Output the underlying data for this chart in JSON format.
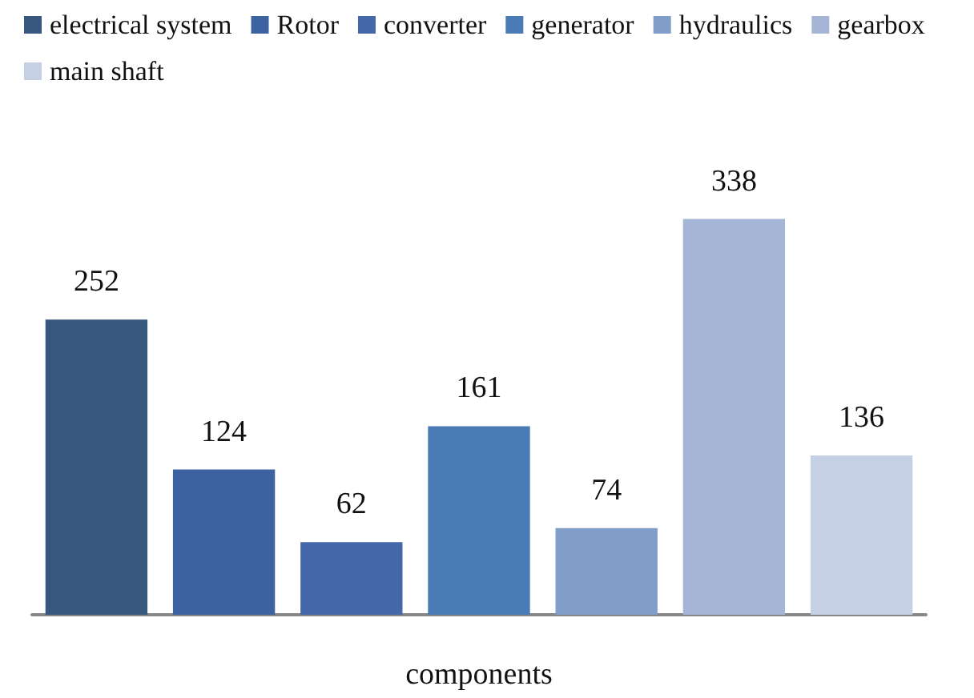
{
  "chart_data": {
    "type": "bar",
    "xlabel": "components",
    "categories": [
      null
    ],
    "data_labels": true,
    "legend": "top",
    "series": [
      {
        "name": "electrical system",
        "color": "#37577f",
        "values": [
          252
        ]
      },
      {
        "name": "Rotor",
        "color": "#3d62a0",
        "values": [
          124
        ]
      },
      {
        "name": "converter",
        "color": "#4468a8",
        "values": [
          62
        ]
      },
      {
        "name": "generator",
        "color": "#4a7bb5",
        "values": [
          161
        ]
      },
      {
        "name": "hydraulics",
        "color": "#819dc9",
        "values": [
          74
        ]
      },
      {
        "name": "gearbox",
        "color": "#a5b5d6",
        "values": [
          338
        ]
      },
      {
        "name": "main shaft",
        "color": "#c6d0e4",
        "values": [
          136
        ]
      }
    ]
  }
}
